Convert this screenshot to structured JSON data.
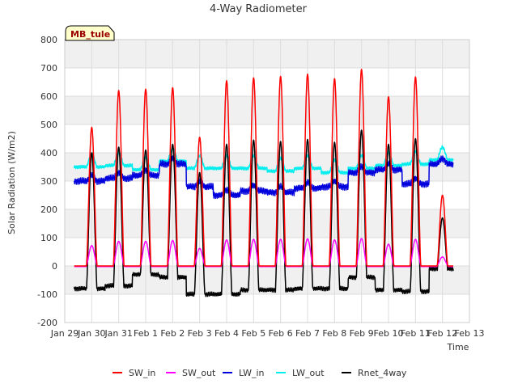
{
  "chart_data": {
    "type": "line",
    "title": "4-Way Radiometer",
    "site_label": "MB_tule",
    "xlabel": "Time",
    "ylabel": "Solar Radiation (W/m2)",
    "xlim": [
      0,
      15
    ],
    "ylim": [
      -200,
      800
    ],
    "yticks": [
      -200,
      -100,
      0,
      100,
      200,
      300,
      400,
      500,
      600,
      700,
      800
    ],
    "xtick_labels": [
      "Jan 29",
      "Jan 30",
      "Jan 31",
      "Feb 1",
      "Feb 2",
      "Feb 3",
      "Feb 4",
      "Feb 5",
      "Feb 6",
      "Feb 7",
      "Feb 8",
      "Feb 9",
      "Feb 10",
      "Feb 11",
      "Feb 12",
      "Feb 13"
    ],
    "x_unit": "days since Jan 29",
    "data_start_day": 0.35,
    "data_end_day": 14.4,
    "daily": {
      "peak_day": [
        1.0,
        2.0,
        3.0,
        4.0,
        5.0,
        6.0,
        7.0,
        8.0,
        9.0,
        10.0,
        11.0,
        12.0,
        13.0,
        14.0
      ],
      "sw_in_peak": [
        490,
        620,
        625,
        630,
        455,
        655,
        665,
        670,
        678,
        662,
        695,
        598,
        668,
        250
      ],
      "sw_out_peak": [
        70,
        85,
        85,
        88,
        60,
        90,
        92,
        92,
        94,
        90,
        95,
        75,
        92,
        30
      ],
      "rnet_peak": [
        400,
        420,
        410,
        430,
        330,
        430,
        445,
        440,
        447,
        437,
        480,
        430,
        450,
        170
      ],
      "rnet_night": [
        -80,
        -70,
        -30,
        -40,
        -100,
        -100,
        -85,
        -85,
        -80,
        -80,
        -40,
        -85,
        -90,
        -10
      ],
      "lw_in_level": [
        300,
        310,
        320,
        360,
        280,
        250,
        265,
        260,
        275,
        280,
        330,
        340,
        290,
        360
      ],
      "lw_out_level": [
        350,
        355,
        340,
        370,
        345,
        345,
        345,
        335,
        345,
        330,
        345,
        355,
        360,
        375
      ]
    },
    "series": [
      {
        "name": "SW_in",
        "color": "#ff0000"
      },
      {
        "name": "SW_out",
        "color": "#ff00ff"
      },
      {
        "name": "LW_in",
        "color": "#0000dd"
      },
      {
        "name": "LW_out",
        "color": "#00eeee"
      },
      {
        "name": "Rnet_4way",
        "color": "#000000"
      }
    ]
  }
}
